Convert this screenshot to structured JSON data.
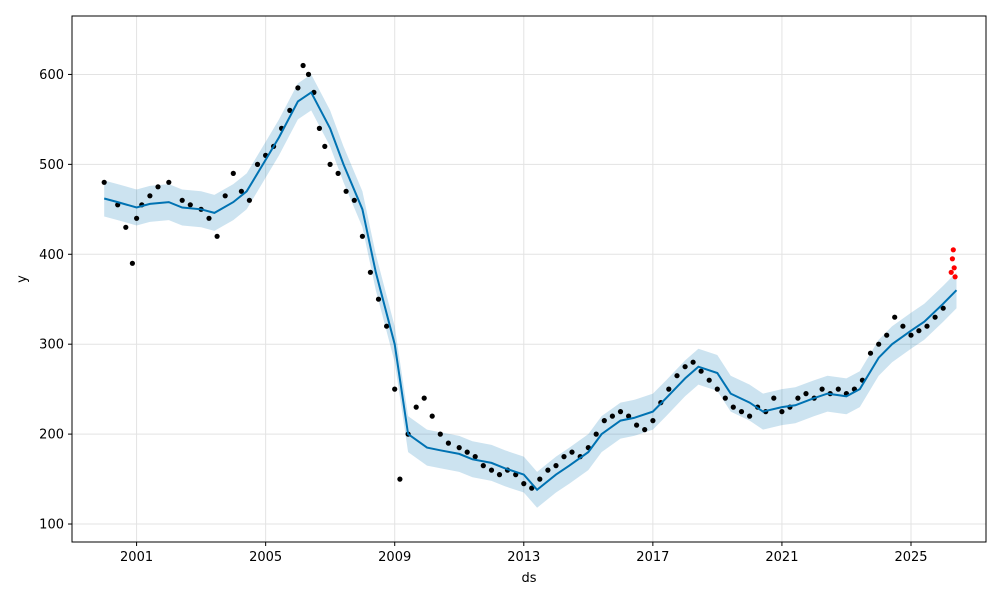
{
  "chart_data": {
    "type": "scatter",
    "title": "",
    "xlabel": "ds",
    "ylabel": "y",
    "xlim": [
      "1999-01-01",
      "2027-04-30"
    ],
    "ylim": [
      80,
      665
    ],
    "grid": true,
    "x_ticks": [
      "2001",
      "2005",
      "2009",
      "2013",
      "2017",
      "2021",
      "2025"
    ],
    "y_ticks": [
      100,
      200,
      300,
      400,
      500,
      600
    ],
    "colors": {
      "observed": "#000000",
      "recent_observed": "#ff0000",
      "forecast": "#0072B2",
      "interval": "#0072B2"
    },
    "series": [
      {
        "role": "observed",
        "x": [
          "2000-01-01",
          "2000-06-01",
          "2000-09-01",
          "2000-11-15",
          "2001-01-01",
          "2001-03-01",
          "2001-06-01",
          "2001-09-01",
          "2002-01-01",
          "2002-06-01",
          "2002-09-01",
          "2003-01-01",
          "2003-04-01",
          "2003-07-01",
          "2003-10-01",
          "2004-01-01",
          "2004-04-01",
          "2004-07-01",
          "2004-10-01",
          "2005-01-01",
          "2005-04-01",
          "2005-07-01",
          "2005-10-01",
          "2006-01-01",
          "2006-03-01",
          "2006-05-01",
          "2006-07-01",
          "2006-09-01",
          "2006-11-01",
          "2007-01-01",
          "2007-04-01",
          "2007-07-01",
          "2007-10-01",
          "2008-01-01",
          "2008-04-01",
          "2008-07-01",
          "2008-10-01",
          "2009-01-01",
          "2009-03-01",
          "2009-06-01",
          "2009-09-01",
          "2009-12-01",
          "2010-03-01",
          "2010-06-01",
          "2010-09-01",
          "2011-01-01",
          "2011-04-01",
          "2011-07-01",
          "2011-10-01",
          "2012-01-01",
          "2012-04-01",
          "2012-07-01",
          "2012-10-01",
          "2013-01-01",
          "2013-04-01",
          "2013-07-01",
          "2013-10-01",
          "2014-01-01",
          "2014-04-01",
          "2014-07-01",
          "2014-10-01",
          "2015-01-01",
          "2015-04-01",
          "2015-07-01",
          "2015-10-01",
          "2016-01-01",
          "2016-04-01",
          "2016-07-01",
          "2016-10-01",
          "2017-01-01",
          "2017-04-01",
          "2017-07-01",
          "2017-10-01",
          "2018-01-01",
          "2018-04-01",
          "2018-07-01",
          "2018-10-01",
          "2019-01-01",
          "2019-04-01",
          "2019-07-01",
          "2019-10-01",
          "2020-01-01",
          "2020-04-01",
          "2020-07-01",
          "2020-10-01",
          "2021-01-01",
          "2021-04-01",
          "2021-07-01",
          "2021-10-01",
          "2022-01-01",
          "2022-04-01",
          "2022-07-01",
          "2022-10-01",
          "2023-01-01",
          "2023-04-01",
          "2023-07-01",
          "2023-10-01",
          "2024-01-01",
          "2024-04-01",
          "2024-07-01",
          "2024-10-01",
          "2025-01-01",
          "2025-04-01",
          "2025-07-01",
          "2025-10-01",
          "2026-01-01"
        ],
        "y": [
          480,
          455,
          430,
          390,
          440,
          455,
          465,
          475,
          480,
          460,
          455,
          450,
          440,
          420,
          465,
          490,
          470,
          460,
          500,
          510,
          520,
          540,
          560,
          585,
          610,
          600,
          580,
          540,
          520,
          500,
          490,
          470,
          460,
          420,
          380,
          350,
          320,
          250,
          150,
          200,
          230,
          240,
          220,
          200,
          190,
          185,
          180,
          175,
          165,
          160,
          155,
          160,
          155,
          145,
          140,
          150,
          160,
          165,
          175,
          180,
          175,
          185,
          200,
          215,
          220,
          225,
          220,
          210,
          205,
          215,
          235,
          250,
          265,
          275,
          280,
          270,
          260,
          250,
          240,
          230,
          225,
          220,
          230,
          225,
          240,
          225,
          230,
          240,
          245,
          240,
          250,
          245,
          250,
          245,
          250,
          260,
          290,
          300,
          310,
          330,
          320,
          310,
          315,
          320,
          330,
          340
        ]
      },
      {
        "role": "recent_observed",
        "x": [
          "2026-04-01",
          "2026-04-15",
          "2026-04-25",
          "2026-05-05",
          "2026-05-15"
        ],
        "y": [
          380,
          395,
          405,
          385,
          375
        ]
      },
      {
        "role": "forecast",
        "x": [
          "2000-01-01",
          "2000-06-01",
          "2001-01-01",
          "2001-06-01",
          "2002-01-01",
          "2002-06-01",
          "2003-01-01",
          "2003-06-01",
          "2004-01-01",
          "2004-06-01",
          "2005-01-01",
          "2005-06-01",
          "2006-01-01",
          "2006-06-01",
          "2007-01-01",
          "2007-06-01",
          "2008-01-01",
          "2008-06-01",
          "2009-01-01",
          "2009-06-01",
          "2010-01-01",
          "2010-06-01",
          "2011-01-01",
          "2011-06-01",
          "2012-01-01",
          "2012-06-01",
          "2013-01-01",
          "2013-06-01",
          "2014-01-01",
          "2014-06-01",
          "2015-01-01",
          "2015-06-01",
          "2016-01-01",
          "2016-06-01",
          "2017-01-01",
          "2017-06-01",
          "2018-01-01",
          "2018-06-01",
          "2019-01-01",
          "2019-06-01",
          "2020-01-01",
          "2020-06-01",
          "2021-01-01",
          "2021-06-01",
          "2022-01-01",
          "2022-06-01",
          "2023-01-01",
          "2023-06-01",
          "2024-01-01",
          "2024-06-01",
          "2025-01-01",
          "2025-06-01",
          "2026-01-01",
          "2026-05-31"
        ],
        "y": [
          462,
          458,
          452,
          456,
          458,
          452,
          450,
          446,
          458,
          470,
          505,
          530,
          570,
          580,
          540,
          500,
          450,
          380,
          300,
          200,
          185,
          182,
          178,
          172,
          168,
          162,
          155,
          138,
          155,
          165,
          180,
          200,
          215,
          218,
          225,
          240,
          262,
          275,
          268,
          245,
          235,
          225,
          230,
          232,
          240,
          245,
          242,
          250,
          285,
          300,
          315,
          325,
          345,
          360
        ],
        "lower": [
          442,
          438,
          432,
          436,
          438,
          432,
          430,
          426,
          438,
          450,
          485,
          510,
          550,
          560,
          520,
          480,
          430,
          360,
          280,
          180,
          165,
          162,
          158,
          152,
          148,
          142,
          135,
          118,
          135,
          145,
          160,
          180,
          195,
          198,
          205,
          220,
          242,
          255,
          248,
          225,
          215,
          205,
          210,
          212,
          220,
          225,
          222,
          230,
          265,
          280,
          295,
          305,
          325,
          340
        ],
        "upper": [
          482,
          478,
          472,
          476,
          478,
          472,
          470,
          466,
          478,
          490,
          525,
          550,
          590,
          600,
          560,
          520,
          470,
          400,
          320,
          220,
          205,
          202,
          198,
          192,
          188,
          182,
          175,
          158,
          175,
          185,
          200,
          220,
          235,
          238,
          245,
          260,
          282,
          295,
          288,
          265,
          255,
          245,
          250,
          252,
          260,
          265,
          262,
          270,
          305,
          320,
          335,
          345,
          365,
          380
        ]
      }
    ]
  }
}
